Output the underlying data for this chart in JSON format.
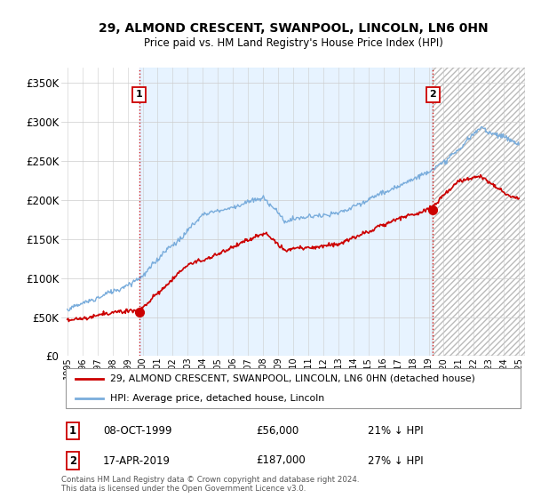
{
  "title": "29, ALMOND CRESCENT, SWANPOOL, LINCOLN, LN6 0HN",
  "subtitle": "Price paid vs. HM Land Registry's House Price Index (HPI)",
  "ylabel_ticks": [
    "£0",
    "£50K",
    "£100K",
    "£150K",
    "£200K",
    "£250K",
    "£300K",
    "£350K"
  ],
  "ytick_values": [
    0,
    50000,
    100000,
    150000,
    200000,
    250000,
    300000,
    350000
  ],
  "ylim": [
    0,
    370000
  ],
  "xlim_start": 1994.6,
  "xlim_end": 2025.4,
  "sale1_x": 1999.77,
  "sale1_y": 56000,
  "sale2_x": 2019.29,
  "sale2_y": 187000,
  "hpi_color": "#7aaddc",
  "price_color": "#cc0000",
  "vline_color": "#cc0000",
  "shade_color": "#ddeeff",
  "legend_label_price": "29, ALMOND CRESCENT, SWANPOOL, LINCOLN, LN6 0HN (detached house)",
  "legend_label_hpi": "HPI: Average price, detached house, Lincoln",
  "sale1_date": "08-OCT-1999",
  "sale1_price": "£56,000",
  "sale1_pct": "21% ↓ HPI",
  "sale2_date": "17-APR-2019",
  "sale2_price": "£187,000",
  "sale2_pct": "27% ↓ HPI",
  "footer": "Contains HM Land Registry data © Crown copyright and database right 2024.\nThis data is licensed under the Open Government Licence v3.0."
}
